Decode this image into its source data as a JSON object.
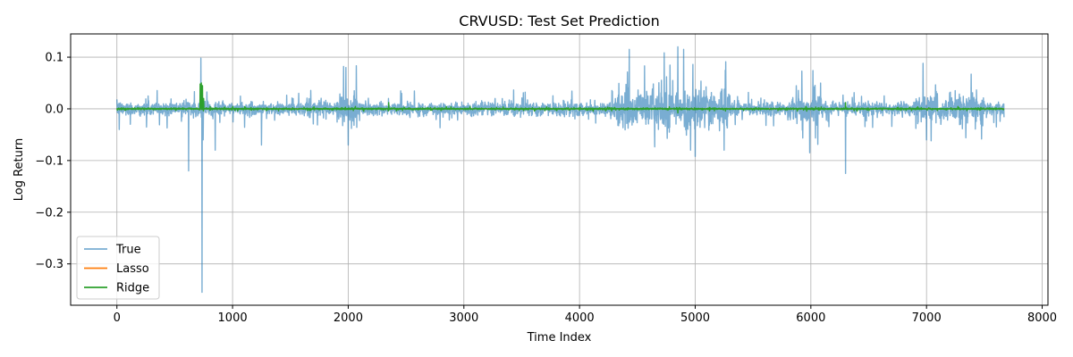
{
  "chart_data": {
    "type": "line",
    "title": "CRVUSD: Test Set Prediction",
    "xlabel": "Time Index",
    "ylabel": "Log Return",
    "xlim": [
      -400,
      8050
    ],
    "ylim": [
      -0.38,
      0.145
    ],
    "xticks": [
      0,
      1000,
      2000,
      3000,
      4000,
      5000,
      6000,
      7000,
      8000
    ],
    "xtick_labels": [
      "0",
      "1000",
      "2000",
      "3000",
      "4000",
      "5000",
      "6000",
      "7000",
      "8000"
    ],
    "yticks": [
      0.1,
      0.0,
      -0.1,
      -0.2,
      -0.3
    ],
    "ytick_labels": [
      "0.1",
      "0.0",
      "−0.1",
      "−0.2",
      "−0.3"
    ],
    "grid": true,
    "legend_position": "lower-left",
    "series": [
      {
        "name": "True",
        "color": "#1f77b4",
        "opacity": 0.6,
        "x_range": [
          0,
          7670
        ],
        "baseline_amplitude": 0.012,
        "volatile_regions": [
          [
            1900,
            2100,
            0.028
          ],
          [
            4300,
            5300,
            0.035
          ],
          [
            5800,
            6100,
            0.025
          ],
          [
            6900,
            7500,
            0.025
          ]
        ],
        "notable_points": [
          [
            20,
            -0.04
          ],
          [
            620,
            -0.12
          ],
          [
            725,
            0.098
          ],
          [
            735,
            -0.355
          ],
          [
            745,
            -0.06
          ],
          [
            850,
            -0.08
          ],
          [
            1250,
            -0.07
          ],
          [
            1960,
            0.082
          ],
          [
            1980,
            0.08
          ],
          [
            2000,
            -0.07
          ],
          [
            4430,
            0.115
          ],
          [
            4850,
            0.12
          ],
          [
            4900,
            0.115
          ],
          [
            4960,
            -0.08
          ],
          [
            5000,
            -0.092
          ],
          [
            5250,
            -0.08
          ],
          [
            5990,
            -0.085
          ],
          [
            6300,
            -0.125
          ],
          [
            6970,
            0.088
          ],
          [
            7000,
            -0.06
          ]
        ]
      },
      {
        "name": "Lasso",
        "color": "#ff7f0e",
        "opacity": 1.0,
        "x_range": [
          0,
          7670
        ],
        "constant_value": 0.0
      },
      {
        "name": "Ridge",
        "color": "#2ca02c",
        "opacity": 1.0,
        "x_range": [
          0,
          7670
        ],
        "baseline_amplitude": 0.0015,
        "notable_points": [
          [
            720,
            0.048
          ],
          [
            730,
            0.05
          ],
          [
            740,
            0.045
          ],
          [
            750,
            0.02
          ],
          [
            4850,
            -0.008
          ],
          [
            6300,
            0.012
          ],
          [
            2350,
            0.012
          ]
        ]
      }
    ]
  }
}
